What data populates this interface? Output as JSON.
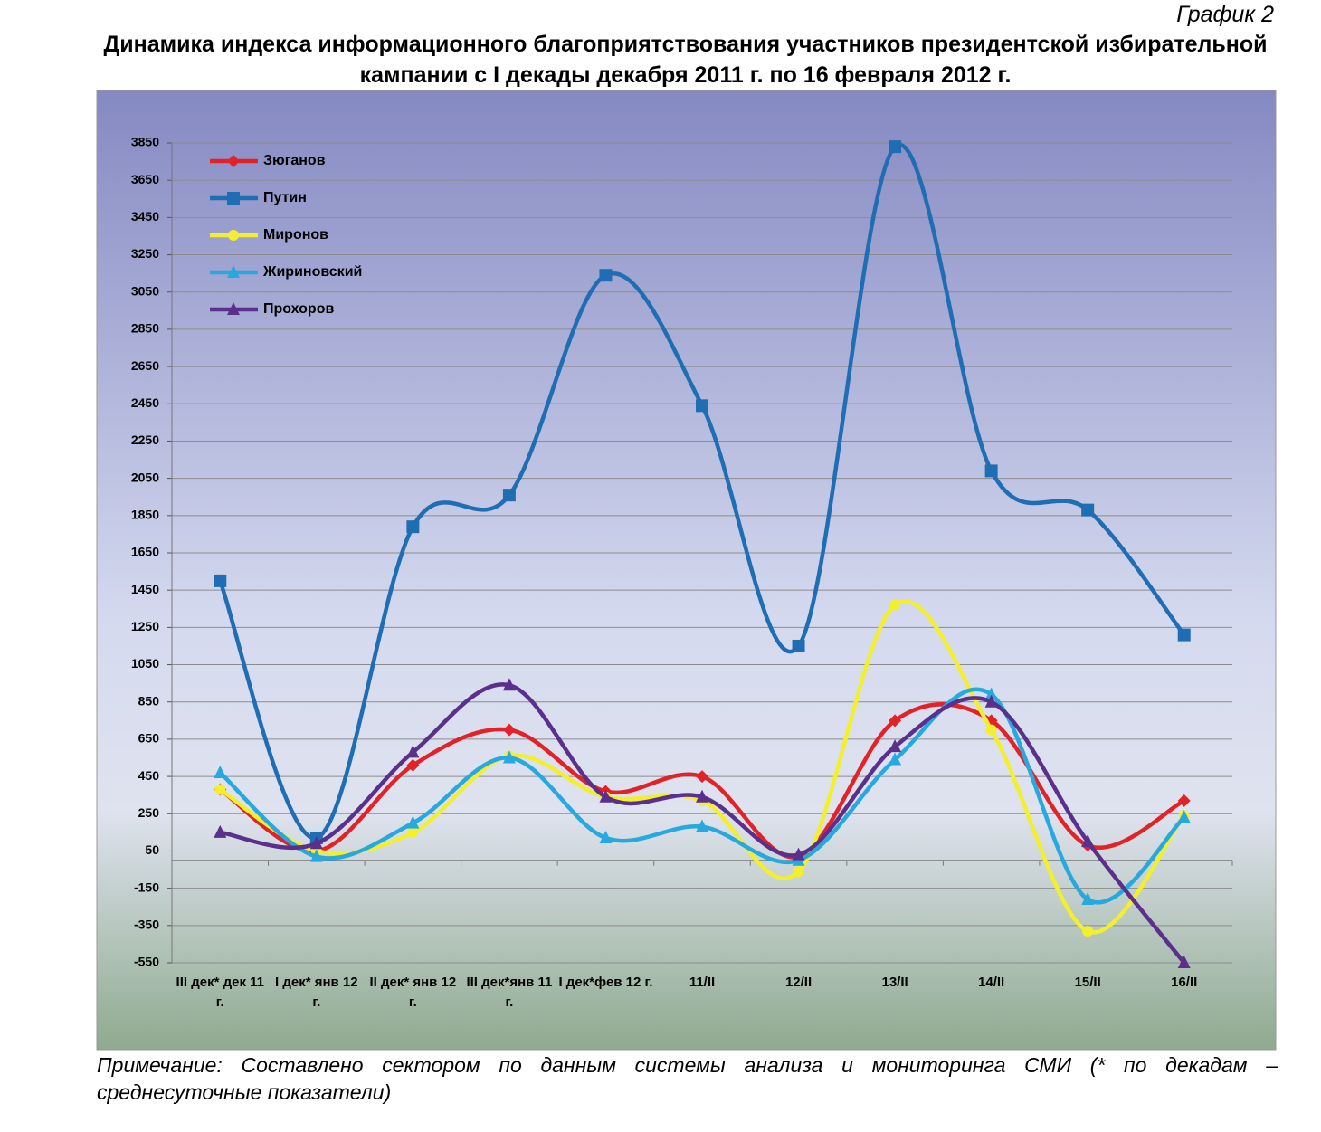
{
  "header": "График 2",
  "chart_data": {
    "type": "line",
    "title": "Динамика индекса информационного благоприятствования участников президентской избирательной кампании с I декады декабря 2011 г. по 16 февраля 2012 г.",
    "categories": [
      "III дек* дек 11 г.",
      "I дек* янв 12 г.",
      "II дек* янв 12 г.",
      "III дек*янв 11 г.",
      "I дек*фев 12 г.",
      "11/II",
      "12/II",
      "13/II",
      "14/II",
      "15/II",
      "16/II"
    ],
    "series": [
      {
        "name": "Зюганов",
        "color": "#e32227",
        "marker": "diamond",
        "values": [
          380,
          50,
          510,
          700,
          370,
          450,
          20,
          750,
          750,
          80,
          320
        ]
      },
      {
        "name": "Путин",
        "color": "#1f6db3",
        "marker": "square",
        "values": [
          1500,
          120,
          1790,
          1960,
          3140,
          2440,
          1150,
          3830,
          2090,
          1880,
          1210
        ]
      },
      {
        "name": "Миронов",
        "color": "#f4ef2c",
        "marker": "circle",
        "values": [
          380,
          50,
          150,
          560,
          340,
          320,
          -60,
          1370,
          700,
          -380,
          240
        ]
      },
      {
        "name": "Жириновский",
        "color": "#27a8df",
        "marker": "triangle",
        "values": [
          470,
          20,
          200,
          550,
          120,
          180,
          0,
          540,
          890,
          -210,
          230
        ]
      },
      {
        "name": "Прохоров",
        "color": "#5b2f8c",
        "marker": "triangle",
        "values": [
          150,
          90,
          580,
          940,
          340,
          340,
          30,
          610,
          850,
          100,
          -550
        ]
      }
    ],
    "ylim": [
      -550,
      3850
    ],
    "yticks": [
      -550,
      -350,
      -150,
      50,
      250,
      450,
      650,
      850,
      1050,
      1250,
      1450,
      1650,
      1850,
      2050,
      2250,
      2450,
      2650,
      2850,
      3050,
      3250,
      3450,
      3650,
      3850
    ],
    "grid": true,
    "smooth": true,
    "legend": "top-left"
  },
  "note": "Примечание: Составлено сектором по данным системы анализа и мониторинга СМИ (* по декадам – среднесуточные показатели)"
}
